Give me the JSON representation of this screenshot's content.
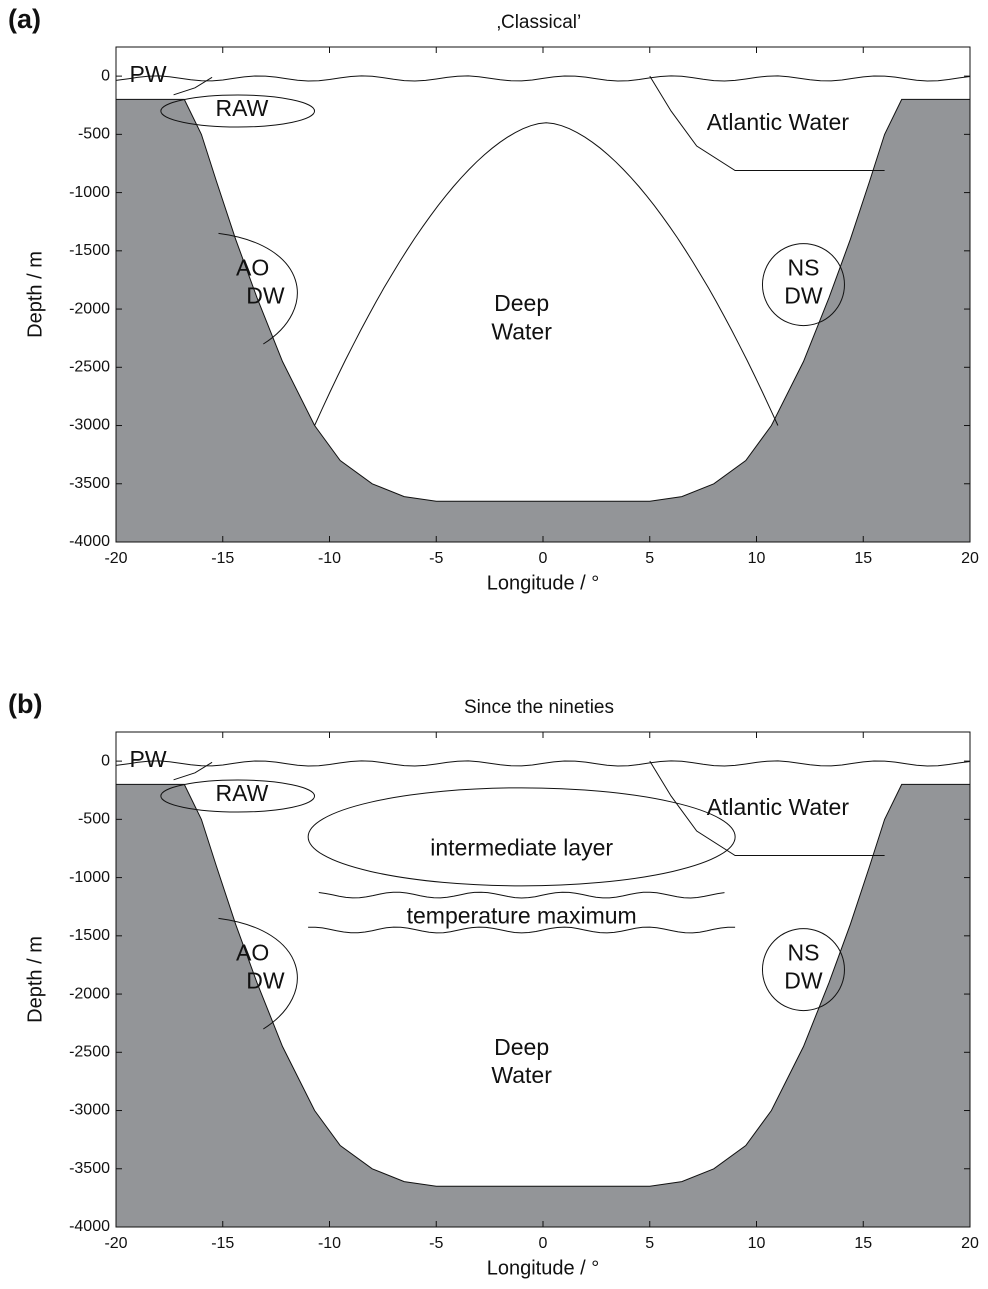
{
  "chart_data": [
    {
      "type": "schematic",
      "panel": "(a)",
      "title": "‚Classical’",
      "xlabel": "Longitude / °",
      "ylabel": "Depth / m",
      "xlim": [
        -20,
        20
      ],
      "ylim": [
        -4000,
        250
      ],
      "xticks": [
        -20,
        -15,
        -10,
        -5,
        0,
        5,
        10,
        15,
        20
      ],
      "yticks": [
        -4000,
        -3500,
        -3000,
        -2500,
        -2000,
        -1500,
        -1000,
        -500,
        0
      ],
      "annotations": [
        "PW",
        "RAW",
        "Atlantic Water",
        "AO",
        "DW",
        "NS",
        "DW",
        "Deep",
        "Water"
      ]
    },
    {
      "type": "schematic",
      "panel": "(b)",
      "title": "Since the nineties",
      "xlabel": "Longitude / °",
      "ylabel": "Depth / m",
      "xlim": [
        -20,
        20
      ],
      "ylim": [
        -4000,
        250
      ],
      "xticks": [
        -20,
        -15,
        -10,
        -5,
        0,
        5,
        10,
        15,
        20
      ],
      "yticks": [
        -4000,
        -3500,
        -3000,
        -2500,
        -2000,
        -1500,
        -1000,
        -500,
        0
      ],
      "annotations": [
        "PW",
        "RAW",
        "Atlantic Water",
        "intermediate layer",
        "temperature maximum",
        "AO",
        "DW",
        "NS",
        "DW",
        "Deep",
        "Water"
      ]
    }
  ]
}
